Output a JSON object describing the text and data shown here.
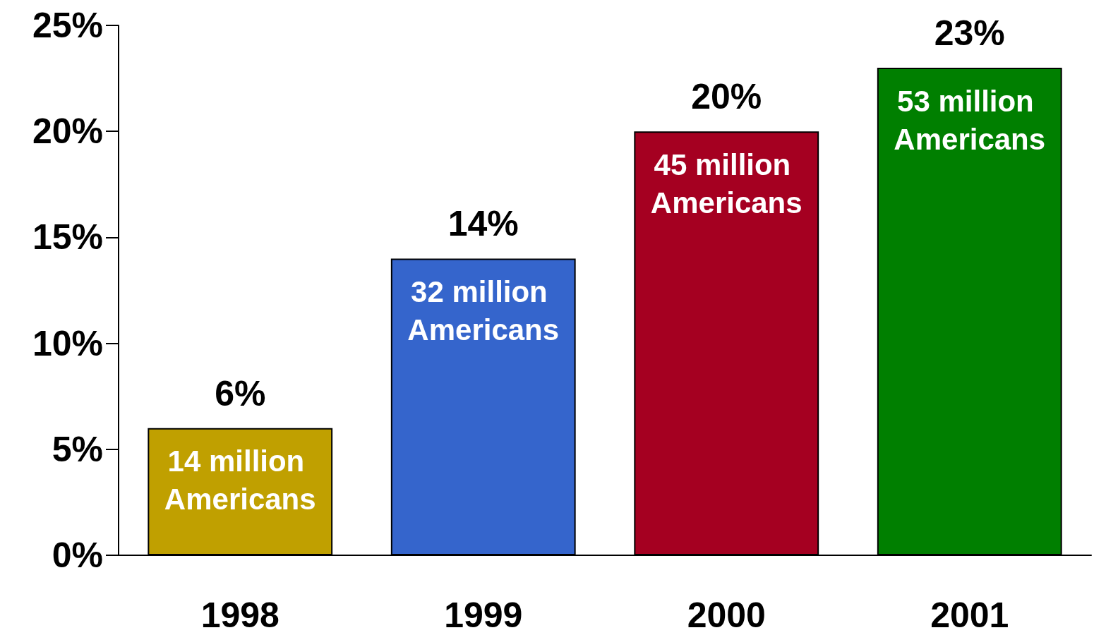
{
  "chart_data": {
    "type": "bar",
    "categories": [
      "1998",
      "1999",
      "2000",
      "2001"
    ],
    "values": [
      6,
      14,
      20,
      23
    ],
    "colors": [
      "#c0a000",
      "#3565cc",
      "#a50021",
      "#007f00"
    ],
    "value_labels": [
      "6%",
      "14%",
      "20%",
      "23%"
    ],
    "ylim": [
      0,
      25
    ],
    "yticks": [
      {
        "value": 0,
        "label": "0%"
      },
      {
        "value": 5,
        "label": "5%"
      },
      {
        "value": 10,
        "label": "10%"
      },
      {
        "value": 15,
        "label": "15%"
      },
      {
        "value": 20,
        "label": "20%"
      },
      {
        "value": 25,
        "label": "25%"
      }
    ],
    "grid": false,
    "annotations": [
      {
        "text": "14 million Americans",
        "x": "1998",
        "y": 6
      },
      {
        "text": "32 million Americans",
        "x": "1999",
        "y": 14
      },
      {
        "text": "45 million Americans",
        "x": "2000",
        "y": 20
      },
      {
        "text": "53 million Americans",
        "x": "2001",
        "y": 23
      }
    ]
  }
}
